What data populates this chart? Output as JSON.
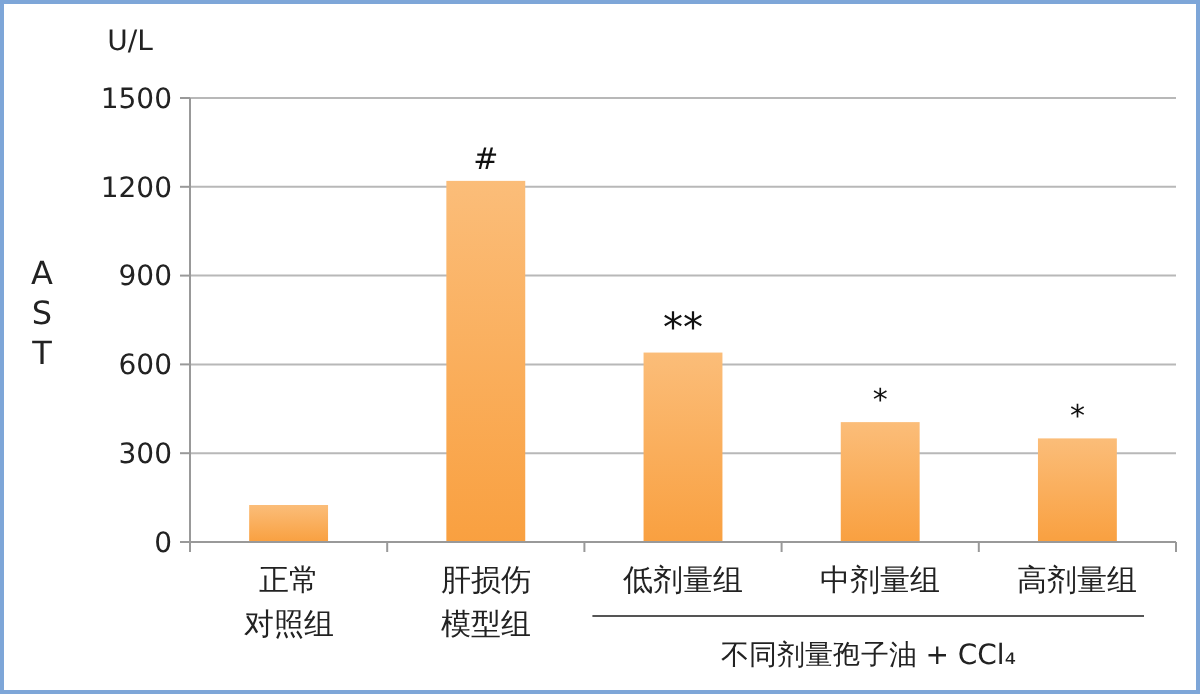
{
  "chart_data": {
    "type": "bar",
    "ylabel": "AST",
    "categories": [
      "正常对照组",
      "肝损伤模型组",
      "低剂量组",
      "中剂量组",
      "高剂量组"
    ],
    "values": [
      125,
      1220,
      640,
      405,
      350
    ],
    "color": "#f9a040",
    "ylim": [
      0,
      1500
    ],
    "yticks": [
      0,
      300,
      600,
      900,
      1200,
      1500
    ],
    "grid": "y",
    "annotations": [
      "U/L",
      "不同剂量孢子油 + CCl₄",
      {
        "text": "#",
        "x": "肝损伤模型组",
        "y": 1220
      },
      {
        "text": "**",
        "x": "低剂量组",
        "y": 640
      },
      {
        "text": "*",
        "x": "中剂量组",
        "y": 405
      },
      {
        "text": "*",
        "x": "高剂量组",
        "y": 350
      }
    ]
  }
}
